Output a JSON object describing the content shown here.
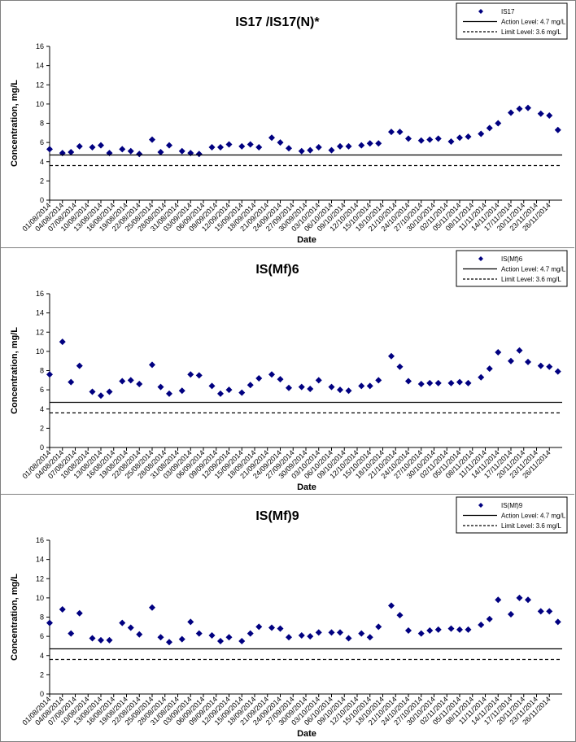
{
  "chart_data": [
    {
      "type": "scatter",
      "title": "IS17 /IS17(N)*",
      "xlabel": "Date",
      "ylabel": "Concentration, mg/L",
      "ylim": [
        0,
        16
      ],
      "yticks": [
        0,
        2,
        4,
        6,
        8,
        10,
        12,
        14,
        16
      ],
      "xticklabels": [
        "01/08/2014",
        "04/08/2014",
        "07/08/2014",
        "10/08/2014",
        "13/08/2014",
        "16/08/2014",
        "19/08/2014",
        "22/08/2014",
        "25/08/2014",
        "28/08/2014",
        "31/08/2014",
        "03/09/2014",
        "06/09/2014",
        "09/09/2014",
        "12/09/2014",
        "15/09/2014",
        "18/09/2014",
        "21/09/2014",
        "24/09/2014",
        "27/09/2014",
        "30/09/2014",
        "03/10/2014",
        "06/10/2014",
        "09/10/2014",
        "12/10/2014",
        "15/10/2014",
        "18/10/2014",
        "21/10/2014",
        "24/10/2014",
        "27/10/2014",
        "30/10/2014",
        "02/11/2014",
        "05/11/2014",
        "08/11/2014",
        "11/11/2014",
        "14/11/2014",
        "17/11/2014",
        "20/11/2014",
        "23/11/2014",
        "26/11/2014"
      ],
      "grid": false,
      "legend_position": "top-right",
      "series": [
        {
          "name": "IS17",
          "x": [
            "01/08/2014",
            "04/08/2014",
            "06/08/2014",
            "08/08/2014",
            "11/08/2014",
            "13/08/2014",
            "15/08/2014",
            "18/08/2014",
            "20/08/2014",
            "22/08/2014",
            "25/08/2014",
            "27/08/2014",
            "29/08/2014",
            "01/09/2014",
            "03/09/2014",
            "05/09/2014",
            "08/09/2014",
            "10/09/2014",
            "12/09/2014",
            "15/09/2014",
            "17/09/2014",
            "19/09/2014",
            "22/09/2014",
            "24/09/2014",
            "26/09/2014",
            "29/09/2014",
            "01/10/2014",
            "03/10/2014",
            "06/10/2014",
            "08/10/2014",
            "10/10/2014",
            "13/10/2014",
            "15/10/2014",
            "17/10/2014",
            "20/10/2014",
            "22/10/2014",
            "24/10/2014",
            "27/10/2014",
            "29/10/2014",
            "31/10/2014",
            "03/11/2014",
            "05/11/2014",
            "07/11/2014",
            "10/11/2014",
            "12/11/2014",
            "14/11/2014",
            "17/11/2014",
            "19/11/2014",
            "21/11/2014",
            "24/11/2014",
            "26/11/2014",
            "28/11/2014"
          ],
          "y": [
            5.3,
            4.9,
            5.0,
            5.6,
            5.5,
            5.7,
            4.9,
            5.3,
            5.1,
            4.8,
            6.3,
            5.0,
            5.7,
            5.1,
            4.9,
            4.8,
            5.5,
            5.5,
            5.8,
            5.6,
            5.8,
            5.5,
            6.5,
            6.0,
            5.4,
            5.1,
            5.2,
            5.5,
            5.2,
            5.6,
            5.6,
            5.7,
            5.9,
            5.9,
            7.1,
            7.1,
            6.4,
            6.2,
            6.3,
            6.4,
            6.1,
            6.5,
            6.6,
            6.9,
            7.5,
            8.0,
            9.1,
            9.5,
            9.6,
            9.0,
            8.8,
            7.3
          ]
        },
        {
          "name": "Action Level: 4.7 mg/L",
          "style": "solid",
          "y": 4.7
        },
        {
          "name": "Limit Level: 3.6 mg/L",
          "style": "dashed",
          "y": 3.6
        }
      ]
    },
    {
      "type": "scatter",
      "title": "IS(Mf)6",
      "xlabel": "Date",
      "ylabel": "Concentration, mg/L",
      "ylim": [
        0,
        16
      ],
      "yticks": [
        0,
        2,
        4,
        6,
        8,
        10,
        12,
        14,
        16
      ],
      "xticklabels": [
        "01/08/2014",
        "04/08/2014",
        "07/08/2014",
        "10/08/2014",
        "13/08/2014",
        "16/08/2014",
        "19/08/2014",
        "22/08/2014",
        "25/08/2014",
        "28/08/2014",
        "31/08/2014",
        "03/09/2014",
        "06/09/2014",
        "09/09/2014",
        "12/09/2014",
        "15/09/2014",
        "18/09/2014",
        "21/09/2014",
        "24/09/2014",
        "27/09/2014",
        "30/09/2014",
        "03/10/2014",
        "06/10/2014",
        "09/10/2014",
        "12/10/2014",
        "15/10/2014",
        "18/10/2014",
        "21/10/2014",
        "24/10/2014",
        "27/10/2014",
        "30/10/2014",
        "02/11/2014",
        "05/11/2014",
        "08/11/2014",
        "11/11/2014",
        "14/11/2014",
        "17/11/2014",
        "20/11/2014",
        "23/11/2014",
        "26/11/2014"
      ],
      "grid": false,
      "legend_position": "top-right",
      "series": [
        {
          "name": "IS(Mf)6",
          "x": [
            "01/08/2014",
            "04/08/2014",
            "06/08/2014",
            "08/08/2014",
            "11/08/2014",
            "13/08/2014",
            "15/08/2014",
            "18/08/2014",
            "20/08/2014",
            "22/08/2014",
            "25/08/2014",
            "27/08/2014",
            "29/08/2014",
            "01/09/2014",
            "03/09/2014",
            "05/09/2014",
            "08/09/2014",
            "10/09/2014",
            "12/09/2014",
            "15/09/2014",
            "17/09/2014",
            "19/09/2014",
            "22/09/2014",
            "24/09/2014",
            "26/09/2014",
            "29/09/2014",
            "01/10/2014",
            "03/10/2014",
            "06/10/2014",
            "08/10/2014",
            "10/10/2014",
            "13/10/2014",
            "15/10/2014",
            "17/10/2014",
            "20/10/2014",
            "22/10/2014",
            "24/10/2014",
            "27/10/2014",
            "29/10/2014",
            "31/10/2014",
            "03/11/2014",
            "05/11/2014",
            "07/11/2014",
            "10/11/2014",
            "12/11/2014",
            "14/11/2014",
            "17/11/2014",
            "19/11/2014",
            "21/11/2014",
            "24/11/2014",
            "26/11/2014",
            "28/11/2014"
          ],
          "y": [
            7.6,
            11.0,
            6.8,
            8.5,
            5.8,
            5.4,
            5.8,
            6.9,
            7.0,
            6.6,
            8.6,
            6.3,
            5.6,
            5.9,
            7.6,
            7.5,
            6.4,
            5.6,
            6.0,
            5.7,
            6.5,
            7.2,
            7.6,
            7.1,
            6.2,
            6.3,
            6.1,
            7.0,
            6.3,
            6.0,
            5.9,
            6.4,
            6.4,
            7.0,
            9.5,
            8.4,
            6.9,
            6.6,
            6.7,
            6.7,
            6.7,
            6.8,
            6.7,
            7.3,
            8.2,
            9.9,
            9.0,
            10.1,
            8.9,
            8.5,
            8.4,
            7.9
          ]
        },
        {
          "name": "Action Level: 4.7 mg/L",
          "style": "solid",
          "y": 4.7
        },
        {
          "name": "Limit Level: 3.6 mg/L",
          "style": "dashed",
          "y": 3.6
        }
      ]
    },
    {
      "type": "scatter",
      "title": "IS(Mf)9",
      "xlabel": "Date",
      "ylabel": "Concentration, mg/L",
      "ylim": [
        0,
        16
      ],
      "yticks": [
        0,
        2,
        4,
        6,
        8,
        10,
        12,
        14,
        16
      ],
      "xticklabels": [
        "01/08/2014",
        "04/08/2014",
        "07/08/2014",
        "10/08/2014",
        "13/08/2014",
        "16/08/2014",
        "19/08/2014",
        "22/08/2014",
        "25/08/2014",
        "28/08/2014",
        "31/08/2014",
        "03/09/2014",
        "06/09/2014",
        "09/09/2014",
        "12/09/2014",
        "15/09/2014",
        "18/09/2014",
        "21/09/2014",
        "24/09/2014",
        "27/09/2014",
        "30/09/2014",
        "03/10/2014",
        "06/10/2014",
        "09/10/2014",
        "12/10/2014",
        "15/10/2014",
        "18/10/2014",
        "21/10/2014",
        "24/10/2014",
        "27/10/2014",
        "30/10/2014",
        "02/11/2014",
        "05/11/2014",
        "08/11/2014",
        "11/11/2014",
        "14/11/2014",
        "17/11/2014",
        "20/11/2014",
        "23/11/2014",
        "26/11/2014"
      ],
      "grid": false,
      "legend_position": "top-right",
      "series": [
        {
          "name": "IS(Mf)9",
          "x": [
            "01/08/2014",
            "04/08/2014",
            "06/08/2014",
            "08/08/2014",
            "11/08/2014",
            "13/08/2014",
            "15/08/2014",
            "18/08/2014",
            "20/08/2014",
            "22/08/2014",
            "25/08/2014",
            "27/08/2014",
            "29/08/2014",
            "01/09/2014",
            "03/09/2014",
            "05/09/2014",
            "08/09/2014",
            "10/09/2014",
            "12/09/2014",
            "15/09/2014",
            "17/09/2014",
            "19/09/2014",
            "22/09/2014",
            "24/09/2014",
            "26/09/2014",
            "29/09/2014",
            "01/10/2014",
            "03/10/2014",
            "06/10/2014",
            "08/10/2014",
            "10/10/2014",
            "13/10/2014",
            "15/10/2014",
            "17/10/2014",
            "20/10/2014",
            "22/10/2014",
            "24/10/2014",
            "27/10/2014",
            "29/10/2014",
            "31/10/2014",
            "03/11/2014",
            "05/11/2014",
            "07/11/2014",
            "10/11/2014",
            "12/11/2014",
            "14/11/2014",
            "17/11/2014",
            "19/11/2014",
            "21/11/2014",
            "24/11/2014",
            "26/11/2014",
            "28/11/2014"
          ],
          "y": [
            7.4,
            8.8,
            6.3,
            8.4,
            5.8,
            5.6,
            5.6,
            7.4,
            6.9,
            6.2,
            9.0,
            5.9,
            5.4,
            5.7,
            7.5,
            6.3,
            6.1,
            5.5,
            5.9,
            5.5,
            6.3,
            7.0,
            6.9,
            6.8,
            5.9,
            6.1,
            6.0,
            6.4,
            6.4,
            6.4,
            5.8,
            6.3,
            5.9,
            7.0,
            9.2,
            8.2,
            6.6,
            6.3,
            6.6,
            6.7,
            6.8,
            6.7,
            6.7,
            7.2,
            7.8,
            9.8,
            8.3,
            10.0,
            9.8,
            8.6,
            8.6,
            7.5
          ]
        },
        {
          "name": "Action Level: 4.7 mg/L",
          "style": "solid",
          "y": 4.7
        },
        {
          "name": "Limit Level: 3.6 mg/L",
          "style": "dashed",
          "y": 3.6
        }
      ]
    }
  ],
  "colors": {
    "marker": "#000080",
    "level_lines": "#000000",
    "frame": "#7f7f7f"
  }
}
